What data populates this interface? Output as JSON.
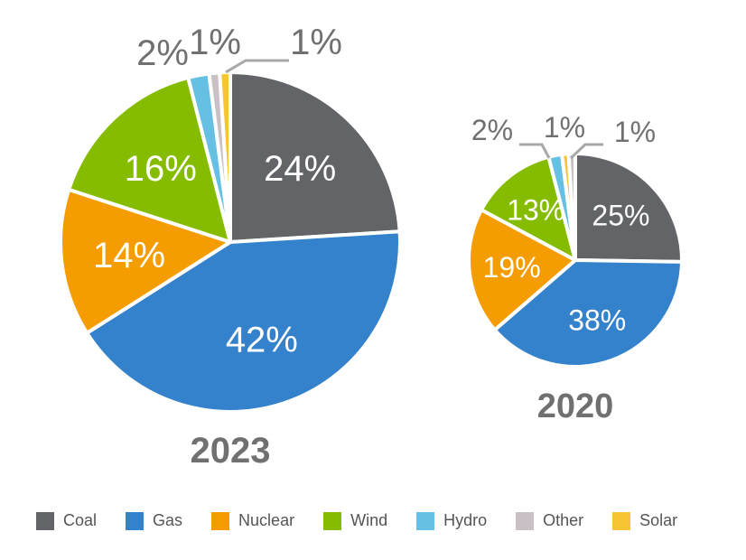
{
  "chart_data": [
    {
      "type": "pie",
      "title": "2023",
      "categories": [
        "Coal",
        "Gas",
        "Nuclear",
        "Wind",
        "Hydro",
        "Other",
        "Solar"
      ],
      "values": [
        24,
        42,
        14,
        16,
        2,
        1,
        1
      ],
      "labels": [
        "24%",
        "42%",
        "14%",
        "16%",
        "2%",
        "1%",
        "1%"
      ]
    },
    {
      "type": "pie",
      "title": "2020",
      "categories": [
        "Coal",
        "Gas",
        "Nuclear",
        "Wind",
        "Hydro",
        "Solar",
        "Other"
      ],
      "values": [
        25,
        38,
        19,
        13,
        2,
        1,
        1
      ],
      "labels": [
        "25%",
        "38%",
        "19%",
        "13%",
        "2%",
        "1%",
        "1%"
      ]
    }
  ],
  "legend": {
    "position": "bottom",
    "items": [
      {
        "label": "Coal",
        "color": "#636468"
      },
      {
        "label": "Gas",
        "color": "#3481cc"
      },
      {
        "label": "Nuclear",
        "color": "#f59d00"
      },
      {
        "label": "Wind",
        "color": "#86bc00"
      },
      {
        "label": "Hydro",
        "color": "#66c0e4"
      },
      {
        "label": "Other",
        "color": "#c9c1c5"
      },
      {
        "label": "Solar",
        "color": "#f7c534"
      }
    ]
  }
}
